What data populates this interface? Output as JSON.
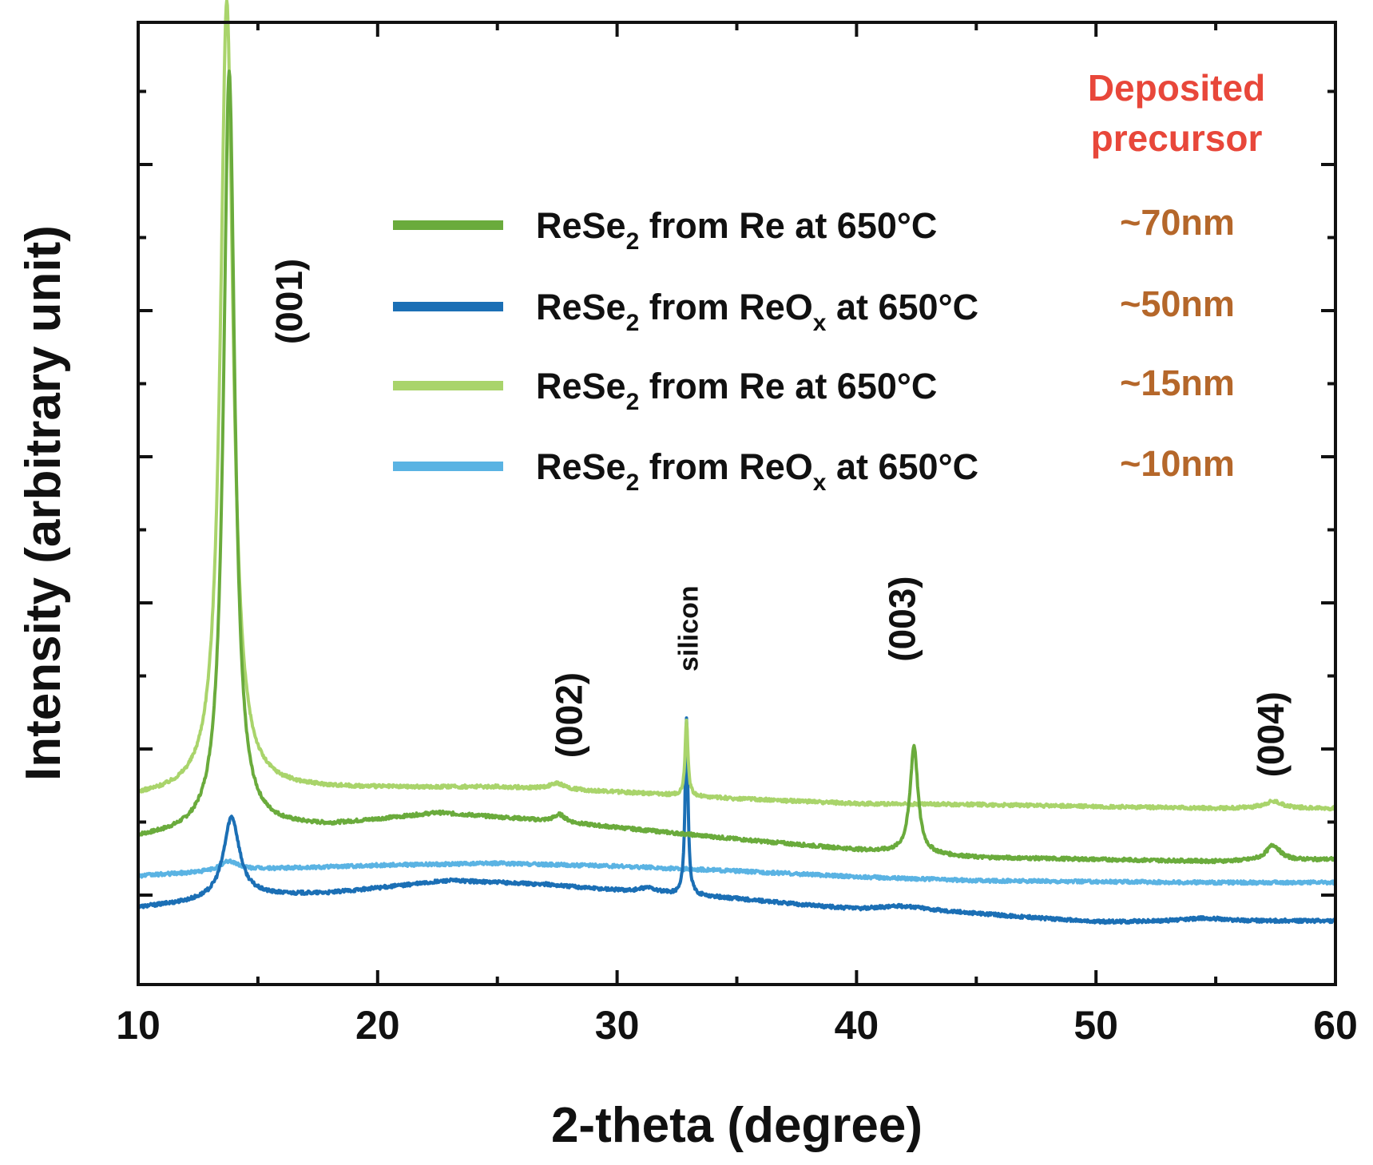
{
  "chart_data": {
    "type": "line",
    "xlabel": "2-theta (degree)",
    "ylabel": "Intensity (arbitrary unit)",
    "xlim": [
      10,
      60
    ],
    "ylim": [
      0,
      100
    ],
    "x_ticks": [
      "10",
      "20",
      "30",
      "40",
      "50",
      "60"
    ],
    "legend_title_line1": "Deposited",
    "legend_title_line2": "precursor",
    "legend_title_color": "#e8473a",
    "thickness_color": "#b5672a",
    "series": [
      {
        "name_main": "ReSe",
        "name_sub": "2",
        "name_mid": " from Re at 650°C",
        "name_sub2": "",
        "name_end": "",
        "thickness": "~70nm",
        "color": "#6aab3c",
        "baseline": [
          [
            10,
            15.2
          ],
          [
            15,
            16.3
          ],
          [
            18,
            16.5
          ],
          [
            22.5,
            17.8
          ],
          [
            26,
            17.2
          ],
          [
            30,
            16.3
          ],
          [
            35,
            15.1
          ],
          [
            40,
            14.0
          ],
          [
            45,
            13.2
          ],
          [
            50,
            13.0
          ],
          [
            55,
            12.8
          ],
          [
            60,
            13.0
          ]
        ],
        "peaks": [
          [
            13.8,
            79,
            0.28
          ],
          [
            27.6,
            0.8,
            0.3
          ],
          [
            42.4,
            11.2,
            0.2
          ],
          [
            57.4,
            1.6,
            0.35
          ]
        ]
      },
      {
        "name_main": "ReSe",
        "name_sub": "2",
        "name_mid": " from ReO",
        "name_sub2": "x",
        "name_end": " at 650°C",
        "thickness": "~50nm",
        "color": "#1b6fb5",
        "baseline": [
          [
            10,
            8.0
          ],
          [
            15,
            9.2
          ],
          [
            18,
            9.5
          ],
          [
            23,
            10.8
          ],
          [
            27,
            10.4
          ],
          [
            30,
            9.8
          ],
          [
            35,
            8.9
          ],
          [
            40,
            7.7
          ],
          [
            45,
            7.3
          ],
          [
            50,
            6.5
          ],
          [
            55,
            6.6
          ],
          [
            60,
            6.6
          ]
        ],
        "peaks": [
          [
            13.9,
            8.5,
            0.4
          ],
          [
            31.3,
            0.5,
            0.4
          ],
          [
            32.9,
            18.5,
            0.07
          ],
          [
            42.0,
            0.6,
            1.5
          ],
          [
            54.5,
            0.3,
            1.0
          ]
        ]
      },
      {
        "name_main": "ReSe",
        "name_sub": "2",
        "name_mid": " from Re at 650°C",
        "name_sub2": "",
        "name_end": "",
        "thickness": "~15nm",
        "color": "#a9d46b",
        "baseline": [
          [
            10,
            19.5
          ],
          [
            15,
            20.3
          ],
          [
            20,
            20.4
          ],
          [
            25,
            20.5
          ],
          [
            30,
            20.0
          ],
          [
            35,
            19.3
          ],
          [
            40,
            18.8
          ],
          [
            45,
            18.7
          ],
          [
            50,
            18.5
          ],
          [
            55,
            18.3
          ],
          [
            60,
            18.3
          ]
        ],
        "peaks": [
          [
            13.7,
            82,
            0.32
          ],
          [
            27.5,
            0.6,
            0.4
          ],
          [
            32.9,
            8.0,
            0.07
          ],
          [
            57.4,
            0.7,
            0.5
          ]
        ]
      },
      {
        "name_main": "ReSe",
        "name_sub": "2",
        "name_mid": " from ReO",
        "name_sub2": "x",
        "name_end": " at 650°C",
        "thickness": "~10nm",
        "color": "#5ab3e3",
        "baseline": [
          [
            10,
            11.3
          ],
          [
            15,
            12.0
          ],
          [
            20,
            12.4
          ],
          [
            25,
            12.6
          ],
          [
            30,
            12.3
          ],
          [
            35,
            11.8
          ],
          [
            40,
            11.2
          ],
          [
            45,
            10.8
          ],
          [
            50,
            10.7
          ],
          [
            55,
            10.6
          ],
          [
            60,
            10.6
          ]
        ],
        "peaks": [
          [
            13.8,
            1.0,
            0.45
          ]
        ]
      }
    ],
    "annotations": [
      {
        "text": "(001)",
        "x": 16.3,
        "y": 71,
        "rotate": true,
        "size": "large"
      },
      {
        "text": "(002)",
        "x": 28.0,
        "y": 28,
        "rotate": true,
        "size": "large"
      },
      {
        "text": "silicon",
        "x": 33.0,
        "y": 37,
        "rotate": true,
        "size": "small"
      },
      {
        "text": "(003)",
        "x": 41.9,
        "y": 38,
        "rotate": true,
        "size": "large"
      },
      {
        "text": "(004)",
        "x": 57.3,
        "y": 26,
        "rotate": true,
        "size": "large"
      }
    ]
  }
}
